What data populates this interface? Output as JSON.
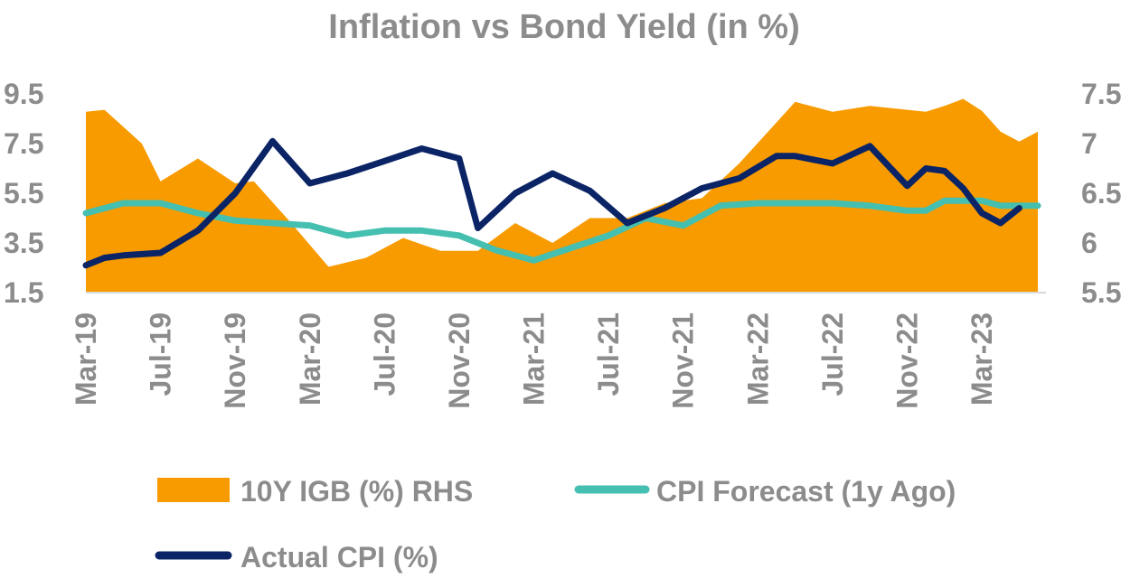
{
  "chart_data": {
    "type": "line",
    "title": "Inflation vs Bond Yield (in %)",
    "xlabel": "",
    "ylabel": "",
    "x_tick_labels": [
      "Mar-19",
      "Jul-19",
      "Nov-19",
      "Mar-20",
      "Jul-20",
      "Nov-20",
      "Mar-21",
      "Jul-21",
      "Nov-21",
      "Mar-22",
      "Jul-22",
      "Nov-22",
      "Mar-23"
    ],
    "y_left": {
      "ticks": [
        "1.5",
        "3.5",
        "5.5",
        "7.5",
        "9.5"
      ],
      "lim": [
        1.5,
        9.5
      ]
    },
    "y_right": {
      "ticks": [
        "5.5",
        "6",
        "6.5",
        "7",
        "7.5"
      ],
      "lim": [
        5.5,
        7.5
      ]
    },
    "legend_position": "bottom",
    "colors": {
      "igb": "#f89b00",
      "forecast": "#45bfb0",
      "actual": "#0b2466",
      "text": "#8c8c8c",
      "axis": "#d9d9d9"
    },
    "series": [
      {
        "name": "10Y IGB (%) RHS",
        "type": "area",
        "axis": "right",
        "points": [
          [
            "2019-03",
            7.32
          ],
          [
            "2019-04",
            7.34
          ],
          [
            "2019-06",
            7.0
          ],
          [
            "2019-07",
            6.62
          ],
          [
            "2019-09",
            6.85
          ],
          [
            "2019-11",
            6.6
          ],
          [
            "2019-12",
            6.62
          ],
          [
            "2020-02",
            6.2
          ],
          [
            "2020-04",
            5.76
          ],
          [
            "2020-06",
            5.85
          ],
          [
            "2020-08",
            6.05
          ],
          [
            "2020-10",
            5.92
          ],
          [
            "2020-12",
            5.92
          ],
          [
            "2021-02",
            6.2
          ],
          [
            "2021-04",
            6.0
          ],
          [
            "2021-06",
            6.25
          ],
          [
            "2021-08",
            6.25
          ],
          [
            "2021-10",
            6.4
          ],
          [
            "2021-12",
            6.45
          ],
          [
            "2022-02",
            6.8
          ],
          [
            "2022-05",
            7.42
          ],
          [
            "2022-07",
            7.32
          ],
          [
            "2022-09",
            7.38
          ],
          [
            "2022-12",
            7.32
          ],
          [
            "2023-01",
            7.38
          ],
          [
            "2023-02",
            7.45
          ],
          [
            "2023-03",
            7.33
          ],
          [
            "2023-04",
            7.12
          ],
          [
            "2023-05",
            7.02
          ],
          [
            "2023-06",
            7.12
          ]
        ]
      },
      {
        "name": "CPI Forecast (1y Ago)",
        "type": "line",
        "axis": "left",
        "points": [
          [
            "2019-03",
            4.7
          ],
          [
            "2019-05",
            5.1
          ],
          [
            "2019-07",
            5.1
          ],
          [
            "2019-09",
            4.7
          ],
          [
            "2019-11",
            4.4
          ],
          [
            "2020-01",
            4.3
          ],
          [
            "2020-03",
            4.2
          ],
          [
            "2020-05",
            3.8
          ],
          [
            "2020-07",
            4.0
          ],
          [
            "2020-09",
            4.0
          ],
          [
            "2020-11",
            3.8
          ],
          [
            "2021-01",
            3.2
          ],
          [
            "2021-03",
            2.8
          ],
          [
            "2021-05",
            3.3
          ],
          [
            "2021-07",
            3.8
          ],
          [
            "2021-09",
            4.5
          ],
          [
            "2021-11",
            4.2
          ],
          [
            "2022-01",
            5.0
          ],
          [
            "2022-03",
            5.1
          ],
          [
            "2022-07",
            5.1
          ],
          [
            "2022-09",
            5.0
          ],
          [
            "2022-11",
            4.8
          ],
          [
            "2022-12",
            4.8
          ],
          [
            "2023-01",
            5.2
          ],
          [
            "2023-03",
            5.2
          ],
          [
            "2023-04",
            5.0
          ],
          [
            "2023-06",
            5.0
          ]
        ]
      },
      {
        "name": "Actual CPI (%)",
        "type": "line",
        "axis": "left",
        "points": [
          [
            "2019-03",
            2.6
          ],
          [
            "2019-04",
            2.9
          ],
          [
            "2019-05",
            3.0
          ],
          [
            "2019-07",
            3.1
          ],
          [
            "2019-09",
            4.0
          ],
          [
            "2019-11",
            5.5
          ],
          [
            "2020-01",
            7.6
          ],
          [
            "2020-03",
            5.9
          ],
          [
            "2020-05",
            6.3
          ],
          [
            "2020-07",
            6.8
          ],
          [
            "2020-09",
            7.3
          ],
          [
            "2020-11",
            6.9
          ],
          [
            "2020-12",
            4.1
          ],
          [
            "2021-02",
            5.5
          ],
          [
            "2021-04",
            6.3
          ],
          [
            "2021-06",
            5.6
          ],
          [
            "2021-08",
            4.3
          ],
          [
            "2021-10",
            4.9
          ],
          [
            "2021-12",
            5.7
          ],
          [
            "2022-02",
            6.1
          ],
          [
            "2022-04",
            7.0
          ],
          [
            "2022-05",
            7.0
          ],
          [
            "2022-07",
            6.7
          ],
          [
            "2022-09",
            7.4
          ],
          [
            "2022-11",
            5.8
          ],
          [
            "2022-12",
            6.5
          ],
          [
            "2023-01",
            6.4
          ],
          [
            "2023-02",
            5.7
          ],
          [
            "2023-03",
            4.7
          ],
          [
            "2023-04",
            4.3
          ],
          [
            "2023-05",
            4.9
          ]
        ]
      }
    ]
  }
}
